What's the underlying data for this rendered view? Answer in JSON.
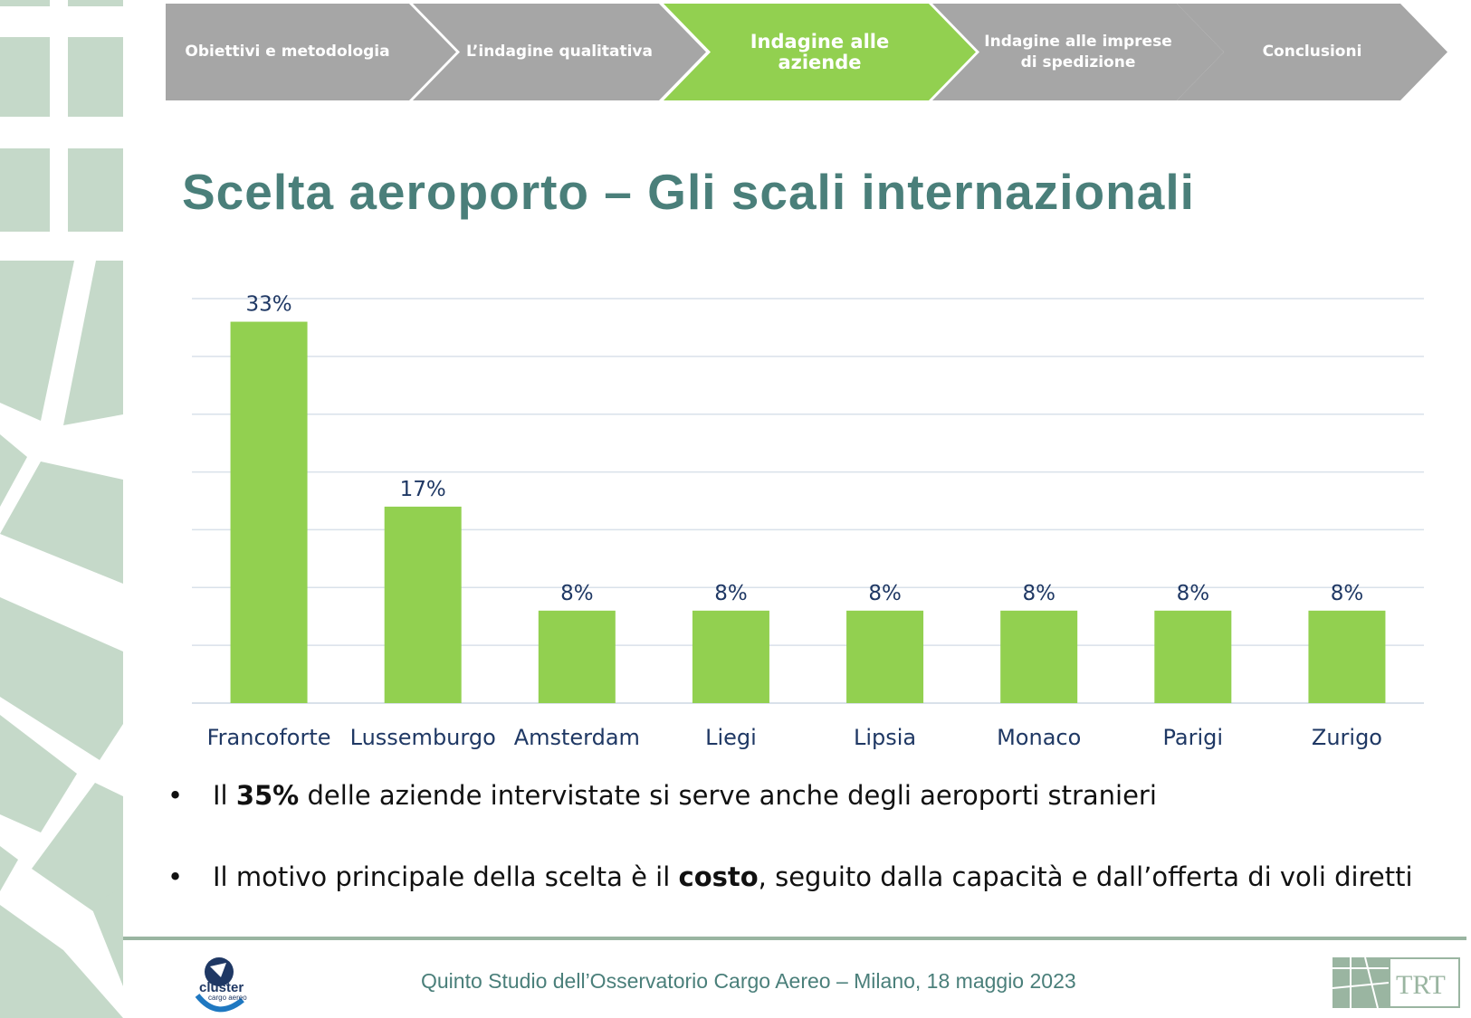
{
  "nav": {
    "steps": [
      {
        "label": "Obiettivi e metodologia",
        "active": false
      },
      {
        "label": "L’indagine qualitativa",
        "active": false
      },
      {
        "label": "Indagine alle aziende",
        "active": true
      },
      {
        "label": "Indagine alle imprese di spedizione",
        "active": false
      },
      {
        "label": "Conclusioni",
        "active": false
      }
    ]
  },
  "title": "Scelta aeroporto – Gli scali internazionali",
  "colors": {
    "accent": "#92d050",
    "inactive": "#a6a6a6",
    "title": "#4a7f7a",
    "labels": "#1f3864"
  },
  "chart_data": {
    "type": "bar",
    "title": "",
    "xlabel": "",
    "ylabel": "",
    "categories": [
      "Francoforte",
      "Lussemburgo",
      "Amsterdam",
      "Liegi",
      "Lipsia",
      "Monaco",
      "Parigi",
      "Zurigo"
    ],
    "values": [
      33,
      17,
      8,
      8,
      8,
      8,
      8,
      8
    ],
    "data_labels": [
      "33%",
      "17%",
      "8%",
      "8%",
      "8%",
      "8%",
      "8%",
      "8%"
    ],
    "ylim": [
      0,
      35
    ],
    "ytick_step": 5,
    "grid": true,
    "y_axis_labels_shown": false
  },
  "bullets": [
    {
      "pre": "Il ",
      "bold": "35%",
      "post": " delle aziende intervistate si serve anche degli aeroporti stranieri"
    },
    {
      "pre": "Il motivo principale della scelta è il ",
      "bold": "costo",
      "post": ", seguito dalla capacità e dall’offerta di voli diretti"
    }
  ],
  "bullet_symbol": "•",
  "footer": {
    "text": "Quinto Studio dell’Osservatorio Cargo Aereo – Milano, 18 maggio 2023",
    "logo_left": "cluster cargo aereo",
    "logo_right": "TRT"
  }
}
